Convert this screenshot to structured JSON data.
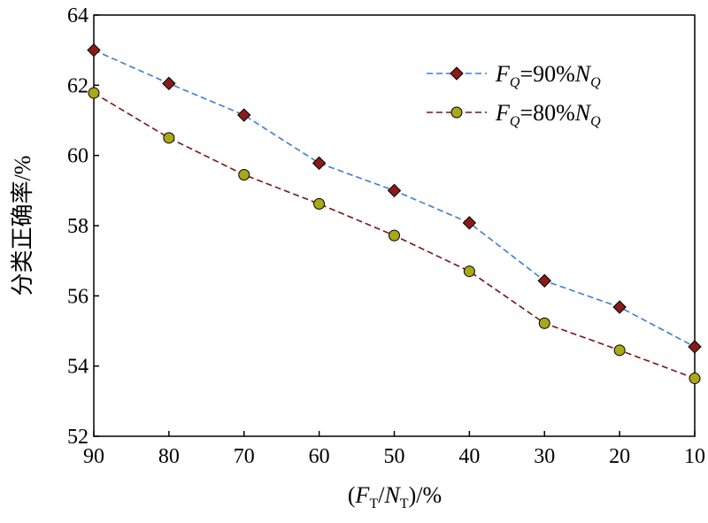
{
  "chart_data": {
    "type": "line",
    "x": [
      90,
      80,
      70,
      60,
      50,
      40,
      30,
      20,
      10
    ],
    "xlim": [
      90,
      10
    ],
    "xticks": [
      "90",
      "80",
      "70",
      "60",
      "50",
      "40",
      "30",
      "20",
      "10"
    ],
    "ylim": [
      52,
      64
    ],
    "yticks": [
      "52",
      "54",
      "56",
      "58",
      "60",
      "62",
      "64"
    ],
    "ylabel": "分类正确率/%",
    "xlabel": {
      "open": "(",
      "var1": "F",
      "sub1": "T",
      "slash": "/",
      "var2": "N",
      "sub2": "T",
      "close": ")/%"
    },
    "grid": false,
    "legend_position": "top-right",
    "series": [
      {
        "name": {
          "var1": "F",
          "sub1": "Q",
          "mid": "=90%",
          "var2": "N",
          "sub2": "Q"
        },
        "values": [
          63.0,
          62.05,
          61.15,
          59.78,
          59.0,
          58.08,
          56.43,
          55.68,
          54.55
        ],
        "line_color": "#3b7dd8",
        "marker": "diamond",
        "marker_color": "#8b1a1a"
      },
      {
        "name": {
          "var1": "F",
          "sub1": "Q",
          "mid": "=80%",
          "var2": "N",
          "sub2": "Q"
        },
        "values": [
          61.78,
          60.5,
          59.45,
          58.62,
          57.72,
          56.7,
          55.22,
          54.45,
          53.65
        ],
        "line_color": "#7a1414",
        "marker": "circle",
        "marker_color": "#a8a818"
      }
    ]
  }
}
